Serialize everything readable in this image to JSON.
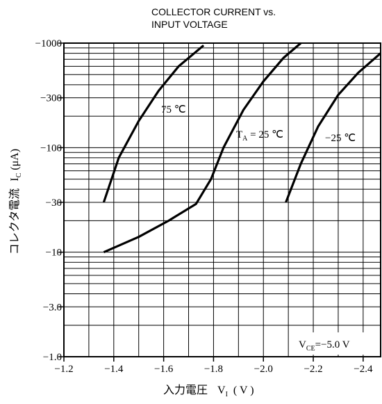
{
  "chart_data": {
    "type": "line",
    "title": [
      "COLLECTOR CURRENT vs.",
      "INPUT VOLTAGE"
    ],
    "xlabel": {
      "main": "入力電圧",
      "symbol": "V",
      "sub": "I",
      "unit": "( V )"
    },
    "ylabel": {
      "main": "コレクタ電流",
      "symbol": "I",
      "sub": "C",
      "unit": "(μA)"
    },
    "x_ticks": [
      "−1.2",
      "−1.4",
      "−1.6",
      "−1.8",
      "−2.0",
      "−2.2",
      "−2.4"
    ],
    "y_ticks": [
      "−1.0",
      "−3.0",
      "−10",
      "−30",
      "−100",
      "−300",
      "−1000"
    ],
    "x_tick_values": [
      -1.2,
      -1.4,
      -1.6,
      -1.8,
      -2.0,
      -2.2,
      -2.4
    ],
    "y_tick_values": [
      1,
      3,
      10,
      30,
      100,
      300,
      1000
    ],
    "xlim": [
      -1.2,
      -2.47
    ],
    "ylim": [
      1,
      1000
    ],
    "y_scale": "log",
    "condition": {
      "symbol": "V",
      "sub": "CE",
      "value": "=−5.0 V"
    },
    "grid": true,
    "series": [
      {
        "label": "75 ℃",
        "points": [
          [
            -1.36,
            30
          ],
          [
            -1.42,
            80
          ],
          [
            -1.5,
            180
          ],
          [
            -1.58,
            350
          ],
          [
            -1.66,
            600
          ],
          [
            -1.76,
            950
          ]
        ]
      },
      {
        "label_symbol": "T",
        "label_sub": "A",
        "label_rest": " = 25 ℃",
        "points": [
          [
            -1.36,
            10
          ],
          [
            -1.5,
            14
          ],
          [
            -1.62,
            20
          ],
          [
            -1.73,
            29
          ],
          [
            -1.79,
            50
          ],
          [
            -1.84,
            100
          ],
          [
            -1.92,
            230
          ],
          [
            -2.0,
            430
          ],
          [
            -2.08,
            720
          ],
          [
            -2.15,
            1000
          ]
        ]
      },
      {
        "label": "−25 ℃",
        "points": [
          [
            -2.09,
            30
          ],
          [
            -2.15,
            70
          ],
          [
            -2.22,
            160
          ],
          [
            -2.3,
            320
          ],
          [
            -2.38,
            520
          ],
          [
            -2.47,
            800
          ]
        ]
      }
    ]
  }
}
